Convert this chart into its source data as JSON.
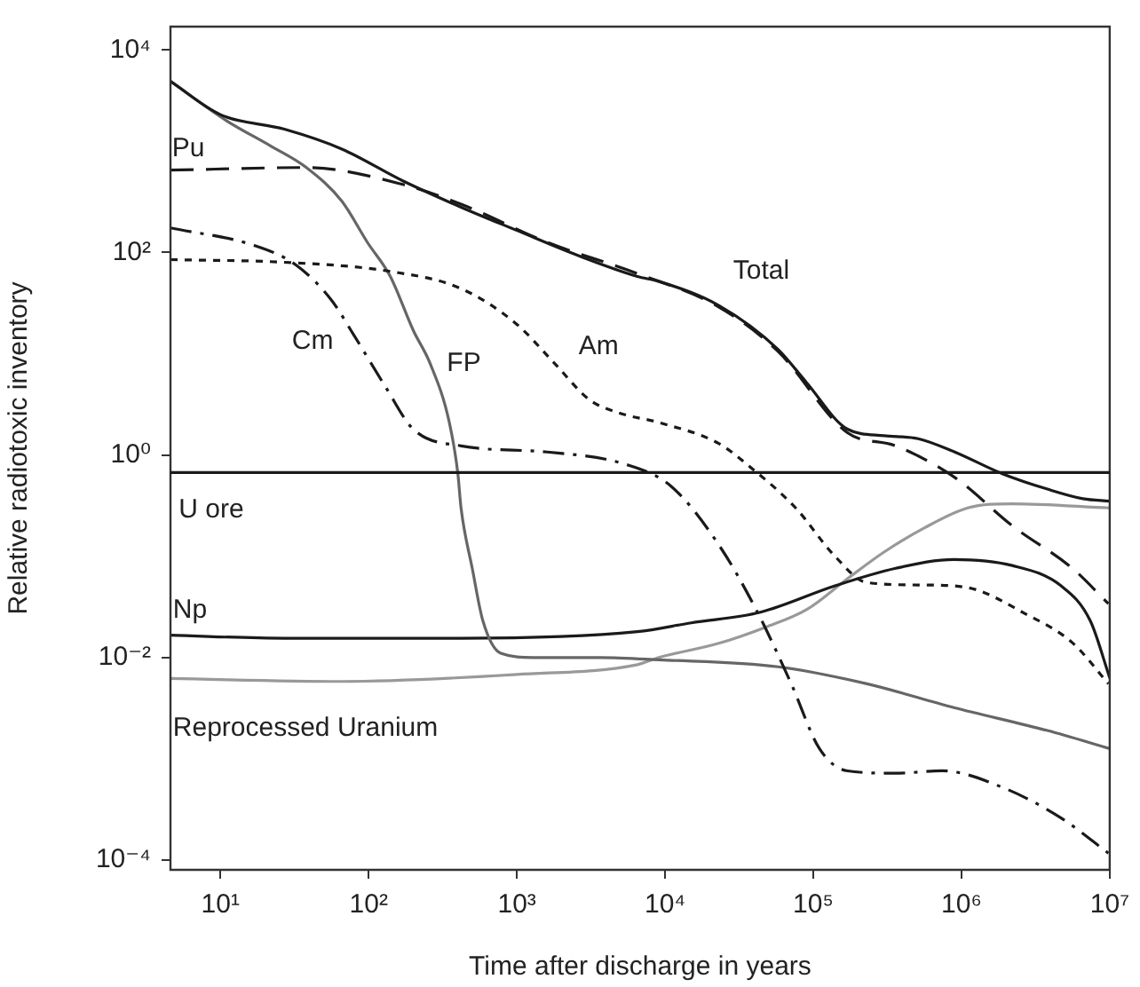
{
  "chart_data": {
    "type": "line",
    "xlabel": "Time after discharge in years",
    "ylabel": "Relative radiotoxic inventory",
    "log": "xy",
    "grid": false,
    "legend": false,
    "marker": "none",
    "xlim": [
      4.6,
      10000000
    ],
    "ylim": [
      8e-05,
      17000
    ],
    "xticks": [
      {
        "value": 10,
        "label": "10¹"
      },
      {
        "value": 100,
        "label": "10²"
      },
      {
        "value": 1000,
        "label": "10³"
      },
      {
        "value": 10000,
        "label": "10⁴"
      },
      {
        "value": 100000,
        "label": "10⁵"
      },
      {
        "value": 1000000,
        "label": "10⁶"
      },
      {
        "value": 10000000,
        "label": "10⁷"
      }
    ],
    "yticks": [
      {
        "value": 0.0001,
        "label": "10⁻⁴"
      },
      {
        "value": 0.01,
        "label": "10⁻²"
      },
      {
        "value": 1,
        "label": "10⁰"
      },
      {
        "value": 100,
        "label": "10²"
      },
      {
        "value": 10000,
        "label": "10⁴"
      }
    ],
    "ref_lines": [
      {
        "axis": "y",
        "value": 0.67,
        "label": "U ore",
        "color": "#1a1a1a"
      }
    ],
    "series": [
      {
        "name": "Total",
        "color": "#1a1a1a",
        "line_style": "solid",
        "x": [
          4.6,
          10,
          27,
          66,
          170,
          420,
          1000,
          2600,
          6500,
          9000,
          23000,
          58000,
          90000,
          170000,
          300000,
          510000,
          900000,
          1900000,
          3800000,
          6600000,
          10000000
        ],
        "values": [
          4900,
          2300,
          1650,
          1050,
          510,
          280,
          165,
          93,
          58,
          52,
          30,
          11,
          5.2,
          1.8,
          1.55,
          1.45,
          1.07,
          0.65,
          0.46,
          0.37,
          0.35
        ]
      },
      {
        "name": "Pu",
        "color": "#1a1a1a",
        "line_style": "dashed",
        "x": [
          4.6,
          38,
          170,
          420,
          1600,
          6500,
          23000,
          58000,
          170000,
          360000,
          900000,
          2200000,
          5600000,
          9800000
        ],
        "values": [
          650,
          690,
          470,
          300,
          126,
          62,
          29,
          10.5,
          1.66,
          1.23,
          0.6,
          0.2,
          0.076,
          0.034
        ]
      },
      {
        "name": "Am",
        "color": "#1a1a1a",
        "line_style": "dotted",
        "x": [
          4.6,
          27,
          140,
          420,
          1000,
          1800,
          3100,
          4900,
          9000,
          23000,
          36000,
          76000,
          140000,
          230000,
          560000,
          1100000,
          2700000,
          5600000,
          9800000
        ],
        "values": [
          85,
          80,
          65,
          44,
          19.5,
          8,
          3.5,
          2.6,
          2.1,
          1.3,
          0.8,
          0.3,
          0.1,
          0.055,
          0.052,
          0.049,
          0.027,
          0.014,
          0.0055
        ]
      },
      {
        "name": "Cm",
        "color": "#1a1a1a",
        "line_style": "dashdot",
        "x": [
          4.6,
          17,
          32,
          56,
          79,
          130,
          200,
          420,
          1600,
          5400,
          11000,
          23000,
          41000,
          71000,
          110000,
          170000,
          360000,
          740000,
          1900000,
          4700000,
          9800000
        ],
        "values": [
          175,
          117,
          76,
          34,
          15.5,
          4.7,
          1.8,
          1.23,
          1.07,
          0.81,
          0.49,
          0.13,
          0.03,
          0.0055,
          0.00126,
          0.00076,
          0.00072,
          0.00076,
          0.00052,
          0.00026,
          0.000117
        ]
      },
      {
        "name": "FP",
        "color": "#666666",
        "line_style": "solid",
        "x": [
          4.6,
          11,
          22,
          38,
          66,
          98,
          140,
          200,
          260,
          350,
          400,
          420,
          500,
          590,
          780,
          1300,
          3700,
          9100,
          58000,
          230000,
          890000,
          3800000,
          10000000
        ],
        "values": [
          4900,
          2000,
          1120,
          690,
          320,
          126,
          58,
          17,
          8,
          2.1,
          0.65,
          0.3,
          0.076,
          0.023,
          0.011,
          0.01,
          0.01,
          0.0095,
          0.0081,
          0.0055,
          0.0032,
          0.0019,
          0.00126
        ]
      },
      {
        "name": "Np",
        "color": "#1a1a1a",
        "line_style": "solid",
        "x": [
          4.6,
          27,
          420,
          6500,
          15000,
          44000,
          140000,
          360000,
          890000,
          2200000,
          4700000,
          7400000,
          10000000
        ],
        "values": [
          0.0166,
          0.0155,
          0.0155,
          0.018,
          0.022,
          0.028,
          0.051,
          0.076,
          0.093,
          0.081,
          0.051,
          0.023,
          0.0063
        ]
      },
      {
        "name": "Reprocessed Uranium",
        "color": "#999999",
        "line_style": "solid",
        "x": [
          4.6,
          66,
          1000,
          6500,
          9100,
          23000,
          48000,
          91000,
          170000,
          300000,
          560000,
          1100000,
          2200000,
          10000000
        ],
        "values": [
          0.0062,
          0.0058,
          0.0068,
          0.0085,
          0.01,
          0.0138,
          0.02,
          0.03,
          0.06,
          0.11,
          0.19,
          0.3,
          0.33,
          0.3
        ]
      }
    ]
  }
}
